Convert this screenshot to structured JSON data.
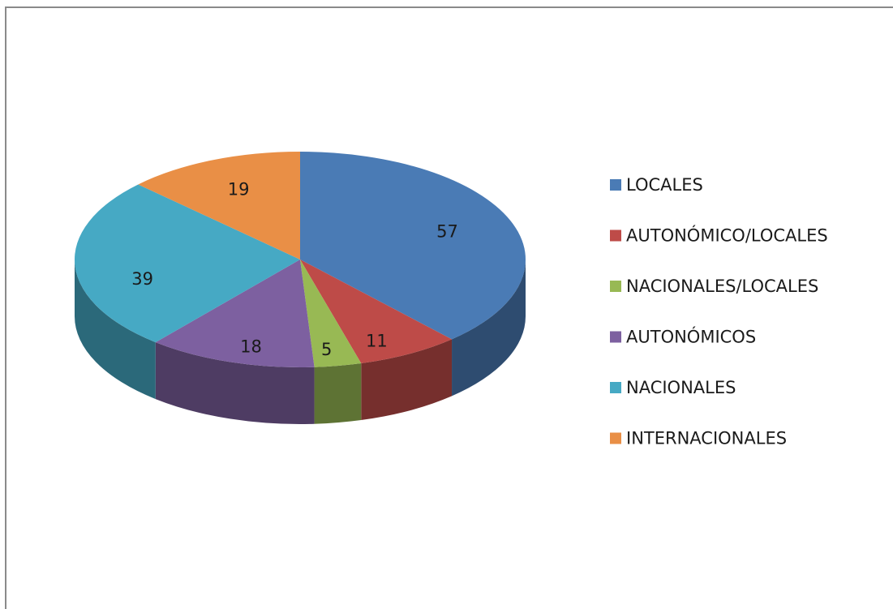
{
  "chart_data": {
    "type": "pie",
    "categories": [
      "LOCALES",
      "AUTONÓMICO/LOCALES",
      "NACIONALES/LOCALES",
      "AUTONÓMICOS",
      "NACIONALES",
      "INTERNACIONALES"
    ],
    "values": [
      57,
      11,
      5,
      18,
      39,
      19
    ],
    "colors": [
      "#4a7bb5",
      "#be4b48",
      "#98b954",
      "#7d60a0",
      "#46a9c4",
      "#e98f46"
    ],
    "legend": "right"
  }
}
